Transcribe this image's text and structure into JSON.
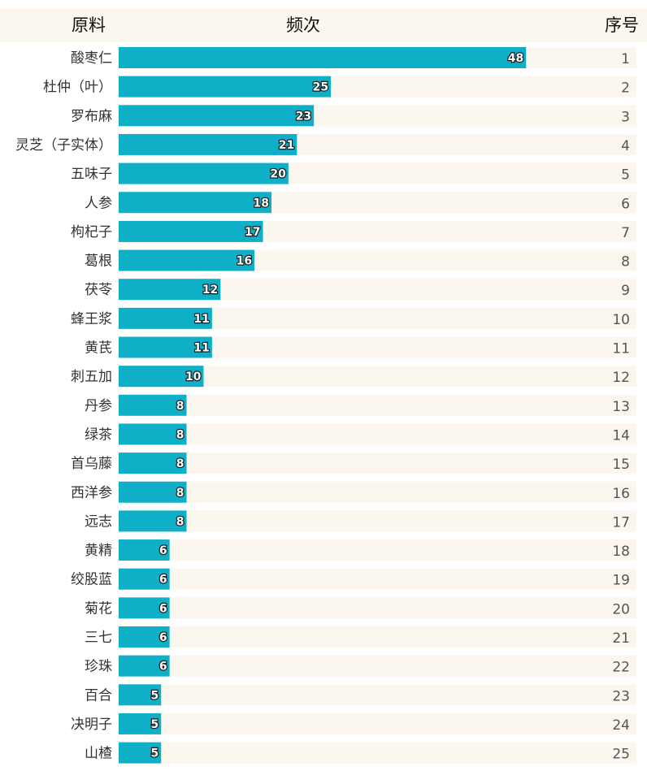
{
  "headers": {
    "name": "原料",
    "count": "频次",
    "rank": "序号"
  },
  "colors": {
    "bar": "#10afc8",
    "track": "#fbf6ee",
    "header_bg": "#fbf6ee"
  },
  "chart_data": {
    "type": "bar",
    "orientation": "horizontal",
    "xlim": [
      0,
      61
    ],
    "categories": [
      "酸枣仁",
      "杜仲（叶）",
      "罗布麻",
      "灵芝（子实体）",
      "五味子",
      "人参",
      "枸杞子",
      "葛根",
      "茯苓",
      "蜂王浆",
      "黄芪",
      "刺五加",
      "丹参",
      "绿茶",
      "首乌藤",
      "西洋参",
      "远志",
      "黄精",
      "绞股蓝",
      "菊花",
      "三七",
      "珍珠",
      "百合",
      "决明子",
      "山楂"
    ],
    "values": [
      48,
      25,
      23,
      21,
      20,
      18,
      17,
      16,
      12,
      11,
      11,
      10,
      8,
      8,
      8,
      8,
      8,
      6,
      6,
      6,
      6,
      6,
      5,
      5,
      5
    ],
    "ranks": [
      1,
      2,
      3,
      4,
      5,
      6,
      7,
      8,
      9,
      10,
      11,
      12,
      13,
      14,
      15,
      16,
      17,
      18,
      19,
      20,
      21,
      22,
      23,
      24,
      25
    ]
  }
}
